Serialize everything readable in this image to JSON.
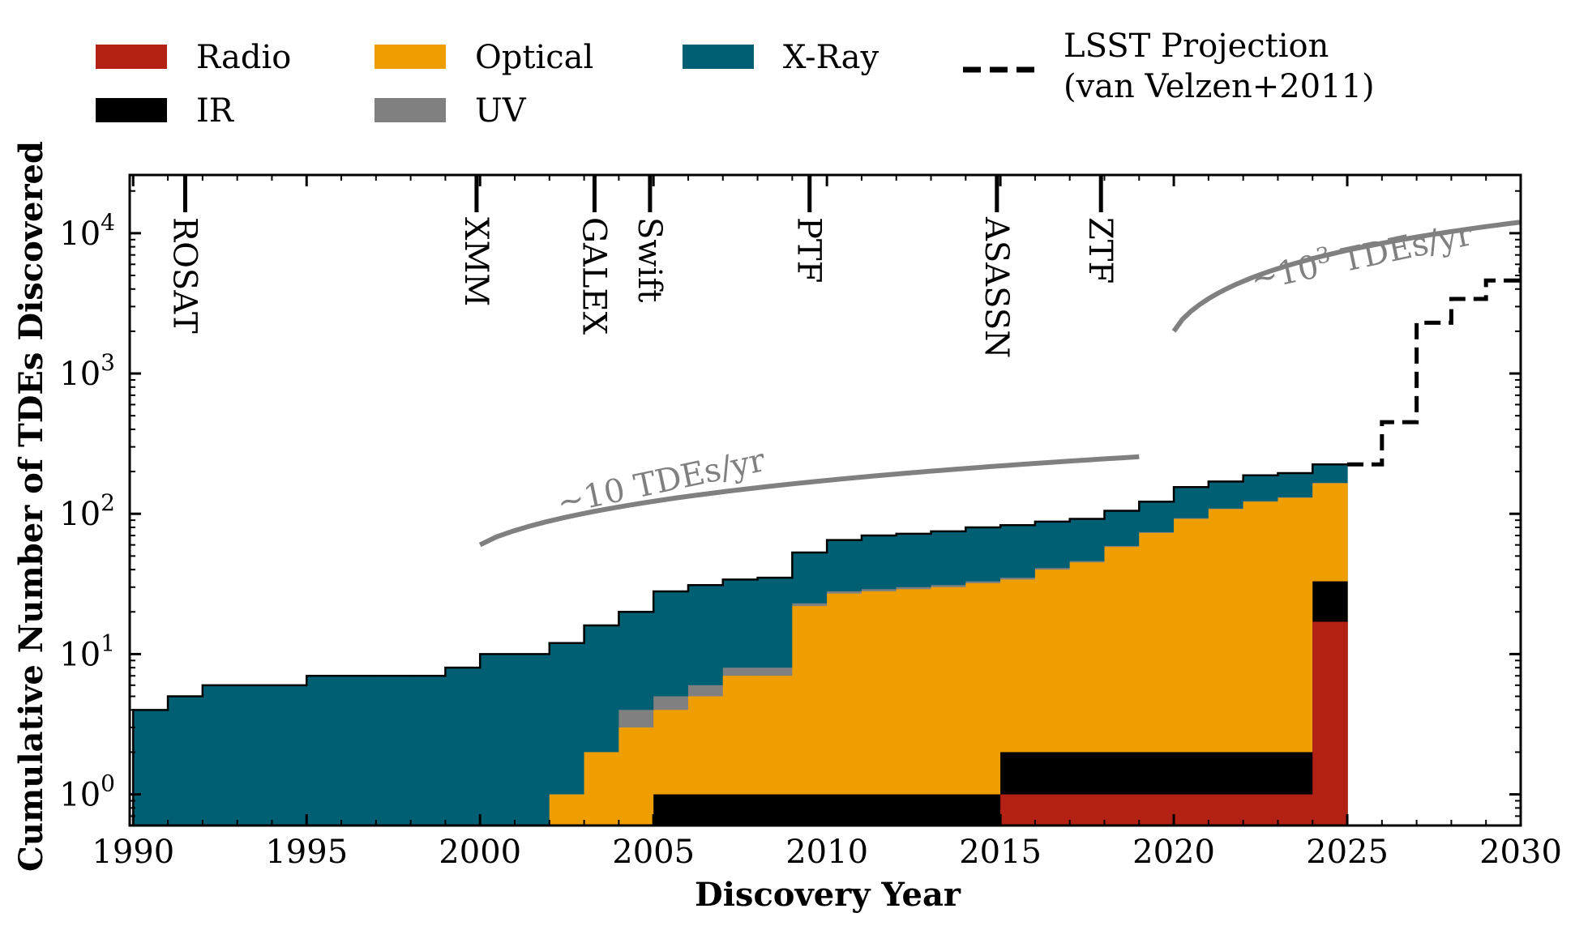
{
  "chart_data": {
    "type": "area",
    "xlabel": "Discovery Year",
    "ylabel": "Cumulative Number of TDEs Discovered",
    "xlim": [
      1989.9,
      2030
    ],
    "ylim": [
      0.6,
      26000
    ],
    "yscale": "log",
    "x_ticks": [
      1990,
      1995,
      2000,
      2005,
      2010,
      2015,
      2020,
      2025,
      2030
    ],
    "y_ticks": [
      {
        "value": 1,
        "base": "10",
        "exp": "0"
      },
      {
        "value": 10,
        "base": "10",
        "exp": "1"
      },
      {
        "value": 100,
        "base": "10",
        "exp": "2"
      },
      {
        "value": 1000,
        "base": "10",
        "exp": "3"
      },
      {
        "value": 10000,
        "base": "10",
        "exp": "4"
      }
    ],
    "legend_position": "top (above plot)",
    "years": [
      1990,
      1991,
      1992,
      1993,
      1994,
      1995,
      1996,
      1997,
      1998,
      1999,
      2000,
      2001,
      2002,
      2003,
      2004,
      2005,
      2006,
      2007,
      2008,
      2009,
      2010,
      2011,
      2012,
      2013,
      2014,
      2015,
      2016,
      2017,
      2018,
      2019,
      2020,
      2021,
      2022,
      2023,
      2024
    ],
    "series": [
      {
        "name": "Radio",
        "color": "#b22114",
        "values": [
          0,
          0,
          0,
          0,
          0,
          0,
          0,
          0,
          0,
          0,
          0,
          0,
          0,
          0,
          0,
          0,
          0,
          0,
          0,
          0,
          0,
          0,
          0,
          0,
          0,
          1,
          1,
          1,
          1,
          1,
          1,
          1,
          1,
          1,
          17
        ]
      },
      {
        "name": "IR",
        "color": "#000000",
        "values": [
          0,
          0,
          0,
          0,
          0,
          0,
          0,
          0,
          0,
          0,
          0,
          0,
          0,
          0,
          0,
          1,
          1,
          1,
          1,
          1,
          1,
          1,
          1,
          1,
          1,
          2,
          2,
          2,
          2,
          2,
          2,
          2,
          2,
          2,
          33
        ]
      },
      {
        "name": "Optical",
        "color": "#ee9e00",
        "values": [
          0,
          0,
          0,
          0,
          0,
          0,
          0,
          0,
          0,
          0,
          0,
          0,
          1,
          2,
          3,
          4,
          5,
          7,
          7,
          22,
          27,
          28,
          29,
          30,
          32,
          34,
          40,
          45,
          58,
          73,
          92,
          108,
          122,
          130,
          165
        ]
      },
      {
        "name": "UV",
        "color": "#808080",
        "values": [
          0,
          0,
          0,
          0,
          0,
          0,
          0,
          0,
          0,
          0,
          0,
          0,
          1,
          2,
          4,
          5,
          6,
          8,
          8,
          23,
          28,
          29,
          30,
          31,
          33,
          35,
          41,
          46,
          59,
          74,
          93,
          109,
          123,
          131,
          166
        ]
      },
      {
        "name": "X-Ray",
        "color": "#005f73",
        "values": [
          4,
          5,
          6,
          6,
          6,
          7,
          7,
          7,
          7,
          8,
          10,
          10,
          12,
          16,
          20,
          28,
          31,
          34,
          35,
          53,
          65,
          70,
          72,
          75,
          80,
          83,
          88,
          92,
          105,
          122,
          155,
          170,
          188,
          195,
          225
        ]
      }
    ],
    "projection": {
      "name": "LSST Projection\n(van Velzen+2011)",
      "label_line1": "LSST Projection",
      "label_line2": "(van Velzen+2011)",
      "style": "dashed",
      "color": "#000000",
      "years": [
        2025,
        2026,
        2027,
        2028,
        2029,
        2030
      ],
      "values": [
        225,
        450,
        2300,
        3400,
        4600,
        5700
      ]
    },
    "rate_curves": [
      {
        "label": "~10 TDEs/yr",
        "color": "#808080",
        "x_start": 2000,
        "x_end": 2019,
        "y_at_start": 60,
        "y_at_end": 255
      },
      {
        "label_prefix": "~10",
        "label_exp": "3",
        "label_suffix": " TDEs/yr",
        "color": "#808080",
        "x_start": 2020,
        "x_end": 2030,
        "y_at_start": 2000,
        "y_at_end": 12000
      }
    ],
    "missions": [
      {
        "name": "ROSAT",
        "year": 1991.5
      },
      {
        "name": "XMM",
        "year": 1999.9
      },
      {
        "name": "GALEX",
        "year": 2003.3
      },
      {
        "name": "Swift",
        "year": 2004.9
      },
      {
        "name": "PTF",
        "year": 2009.5
      },
      {
        "name": "ASASSN",
        "year": 2014.9
      },
      {
        "name": "ZTF",
        "year": 2017.9
      }
    ]
  }
}
